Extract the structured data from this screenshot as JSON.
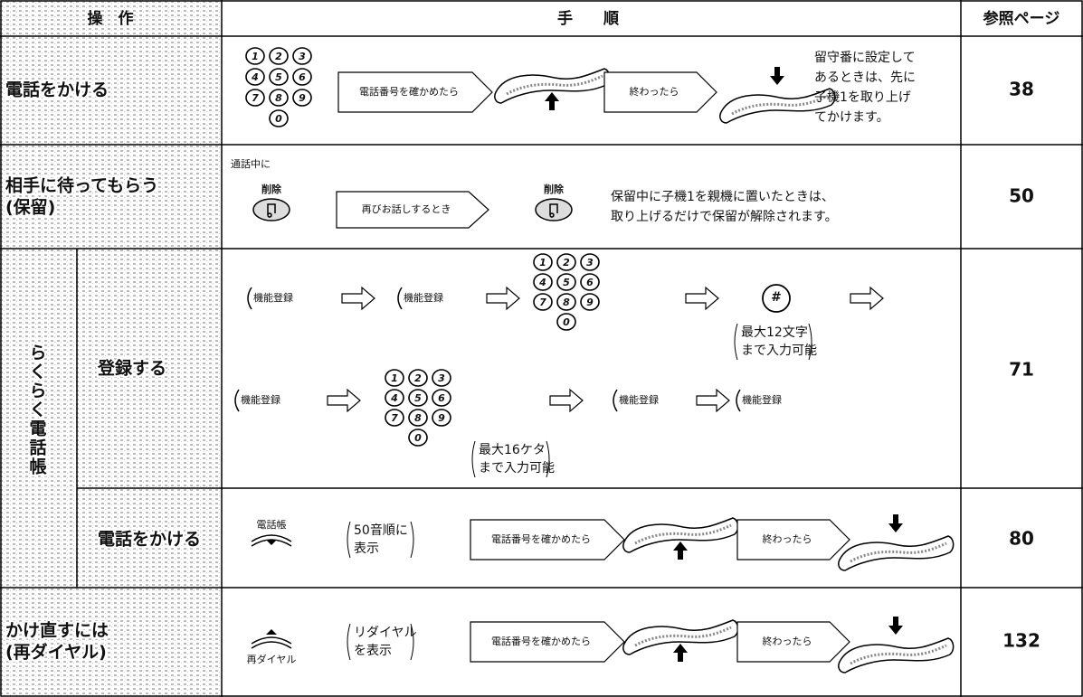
{
  "header": {
    "operation": "操　作",
    "procedure": "手　　順",
    "page": "参照ページ"
  },
  "keypad": [
    "1",
    "2",
    "3",
    "4",
    "5",
    "6",
    "7",
    "8",
    "9",
    "0"
  ],
  "rows": [
    {
      "operation": [
        "電話をかける"
      ],
      "steps": [
        "電話番号を確かめたら",
        "終わったら"
      ],
      "note": [
        "留守番に設定して",
        "あるときは、先に",
        "子機1を取り上げ",
        "てかけます。"
      ],
      "page": "38"
    },
    {
      "operation": [
        "相手に待ってもらう",
        "(保留)"
      ],
      "lead": "通話中に",
      "buttons": [
        "削除",
        "削除"
      ],
      "steps": [
        "再びお話しするとき"
      ],
      "note": [
        "保留中に子機1を親機に置いたときは、",
        "取り上げるだけで保留が解除されます。"
      ],
      "page": "50"
    },
    {
      "group": "らくらく電話帳",
      "operation": [
        "登録する"
      ],
      "buttons": [
        "機能登録",
        "機能登録",
        "機能登録",
        "機能登録",
        "機能登録"
      ],
      "hash": "#",
      "notes": [
        [
          "最大12文字",
          "まで入力可能"
        ],
        [
          "最大16ケタ",
          "まで入力可能"
        ]
      ],
      "page": "71"
    },
    {
      "operation": [
        "電話をかける"
      ],
      "button": "電話帳",
      "note": [
        "50音順に",
        "表示"
      ],
      "steps": [
        "電話番号を確かめたら",
        "終わったら"
      ],
      "page": "80"
    },
    {
      "operation": [
        "かけ直すには",
        "(再ダイヤル)"
      ],
      "button": "再ダイヤル",
      "note": [
        "リダイヤル",
        "を表示"
      ],
      "steps": [
        "電話番号を確かめたら",
        "終わったら"
      ],
      "page": "132"
    }
  ]
}
